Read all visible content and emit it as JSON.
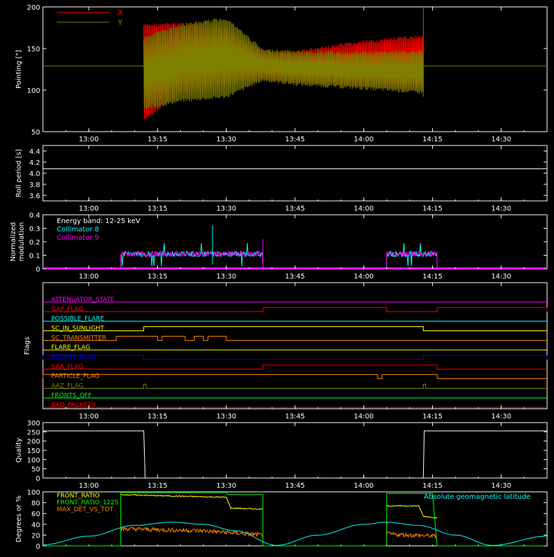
{
  "chart_data": [
    {
      "type": "line",
      "ylabel": "Pointing [\"]",
      "ylim": [
        50,
        200
      ],
      "yticks": [
        50,
        100,
        150,
        200
      ],
      "xlim": [
        "12:50",
        "14:40"
      ],
      "xticks": [
        "13:00",
        "13:15",
        "13:30",
        "13:45",
        "14:00",
        "14:15",
        "14:30"
      ],
      "legend": "top-left",
      "baseline_value": 129,
      "series": [
        {
          "name": "X",
          "color": "#ff0000",
          "start": "13:12",
          "end": "14:13",
          "envelope": [
            {
              "t": "13:12",
              "lo": 62,
              "hi": 180
            },
            {
              "t": "13:20",
              "lo": 95,
              "hi": 182
            },
            {
              "t": "13:30",
              "lo": 105,
              "hi": 175
            },
            {
              "t": "13:38",
              "lo": 112,
              "hi": 148
            },
            {
              "t": "13:45",
              "lo": 108,
              "hi": 148
            },
            {
              "t": "14:00",
              "lo": 103,
              "hi": 160
            },
            {
              "t": "14:13",
              "lo": 100,
              "hi": 167
            }
          ]
        },
        {
          "name": "Y",
          "color": "#808000",
          "start": "13:12",
          "end": "14:13",
          "envelope": [
            {
              "t": "13:12",
              "lo": 75,
              "hi": 165
            },
            {
              "t": "13:20",
              "lo": 85,
              "hi": 180
            },
            {
              "t": "13:30",
              "lo": 90,
              "hi": 188
            },
            {
              "t": "13:38",
              "lo": 110,
              "hi": 150
            },
            {
              "t": "13:45",
              "lo": 105,
              "hi": 148
            },
            {
              "t": "14:00",
              "lo": 100,
              "hi": 147
            },
            {
              "t": "14:13",
              "lo": 95,
              "hi": 148
            }
          ]
        }
      ]
    },
    {
      "type": "line",
      "ylabel": "Roll period [s]",
      "ylim": [
        3.5,
        4.5
      ],
      "yticks": [
        "3.6",
        "3.8",
        "4.0",
        "4.2",
        "4.4"
      ],
      "xticks": [
        "13:00",
        "13:15",
        "13:30",
        "13:45",
        "14:00",
        "14:15",
        "14:30"
      ],
      "series": [
        {
          "color": "#ffffff",
          "constant": 4.08
        }
      ]
    },
    {
      "type": "line",
      "ylabel": "Normalized modulation",
      "ylim": [
        0,
        0.4
      ],
      "yticks": [
        "0",
        "0.1",
        "0.2",
        "0.3",
        "0.4"
      ],
      "xticks": [
        "13:00",
        "13:15",
        "13:30",
        "13:45",
        "14:00",
        "14:15",
        "14:30"
      ],
      "annotation": "Energy band: 12-25 keV",
      "legend": "top-left",
      "series": [
        {
          "name": "Collimator 8",
          "color": "#00ffff",
          "segments": [
            {
              "start": "13:07",
              "end": "13:38",
              "level": 0.11
            },
            {
              "start": "14:05",
              "end": "14:16",
              "level": 0.11
            }
          ]
        },
        {
          "name": "Collimator 9",
          "color": "#ff00ff",
          "segments": [
            {
              "start": "13:07",
              "end": "13:38",
              "level": 0.11
            },
            {
              "start": "14:05",
              "end": "14:16",
              "level": 0.11
            }
          ]
        }
      ]
    },
    {
      "type": "line",
      "ylabel": "Flags",
      "xticks": [
        "13:00",
        "13:15",
        "13:30",
        "13:45",
        "14:00",
        "14:15",
        "14:30"
      ],
      "flags": [
        {
          "name": "ATTENUATOR_STATE",
          "color": "#ff00ff",
          "high": []
        },
        {
          "name": "GAP_FLAG",
          "color": "#ff0000",
          "high": [
            [
              "13:38",
              "14:05"
            ],
            [
              "14:16",
              "14:40"
            ]
          ]
        },
        {
          "name": "POSSIBLE_FLARE",
          "color": "#00ffff",
          "high": []
        },
        {
          "name": "SC_IN_SUNLIGHT",
          "color": "#ffff00",
          "high": [
            [
              "13:12",
              "14:13"
            ]
          ]
        },
        {
          "name": "SC_TRANSMITTER",
          "color": "#ff8800",
          "high": [
            [
              "13:06",
              "13:15"
            ],
            [
              "13:16",
              "13:21"
            ],
            [
              "13:23",
              "13:25"
            ],
            [
              "13:26",
              "13:30"
            ]
          ]
        },
        {
          "name": "FLARE_FLAG",
          "color": "#ffff00",
          "high": []
        },
        {
          "name": "ECLIPSE_FLAG",
          "color": "#0000ff",
          "high": [
            [
              "12:50",
              "13:12"
            ],
            [
              "14:13",
              "14:40"
            ]
          ]
        },
        {
          "name": "SAA_FLAG",
          "color": "#ff0000",
          "high": [
            [
              "13:38",
              "14:16"
            ]
          ]
        },
        {
          "name": "PARTICLE_FLAG",
          "color": "#ff8800",
          "high": [
            [
              "12:50",
              "14:03"
            ],
            [
              "14:04",
              "14:16"
            ]
          ]
        },
        {
          "name": "AAZ_FLAG",
          "color": "#808000",
          "high": [
            [
              "13:12",
              "13:12.5"
            ],
            [
              "14:13",
              "14:13.5"
            ]
          ]
        },
        {
          "name": "FRONTS_OFF",
          "color": "#00ff00",
          "high": []
        },
        {
          "name": "BAD_PACKETS",
          "color": "#ff0000",
          "high": []
        }
      ]
    },
    {
      "type": "line",
      "ylabel": "Quality",
      "ylim": [
        0,
        300
      ],
      "yticks": [
        "0",
        "50",
        "100",
        "150",
        "200",
        "250",
        "300"
      ],
      "xticks": [
        "13:00",
        "13:15",
        "13:30",
        "13:45",
        "14:00",
        "14:15",
        "14:30"
      ],
      "series": [
        {
          "color": "#ffffff",
          "points": [
            [
              "12:50",
              255
            ],
            [
              "13:12",
              255
            ],
            [
              "13:12.3",
              0
            ],
            [
              "14:13",
              0
            ],
            [
              "14:13.2",
              255
            ],
            [
              "14:40",
              255
            ]
          ]
        }
      ]
    },
    {
      "type": "line",
      "ylabel": "Degrees or %",
      "ylim": [
        0,
        100
      ],
      "yticks": [
        "0",
        "20",
        "40",
        "60",
        "80",
        "100"
      ],
      "xticks": [
        "13:00",
        "13:15",
        "13:30",
        "13:45",
        "14:00",
        "14:15",
        "14:30"
      ],
      "legend": "top-left",
      "series": [
        {
          "name": "FRONT_RATIO",
          "color": "#ffff00",
          "points": [
            [
              "13:07",
              95
            ],
            [
              "13:15",
              93
            ],
            [
              "13:25",
              91
            ],
            [
              "13:30",
              90
            ],
            [
              "13:31",
              70
            ],
            [
              "13:38",
              68
            ],
            [
              "14:05",
              74
            ],
            [
              "14:12",
              74
            ],
            [
              "14:13",
              55
            ],
            [
              "14:16",
              52
            ]
          ]
        },
        {
          "name": "FRONT_RATIO_1225",
          "color": "#00ff00",
          "points": [
            [
              "12:50",
              0
            ],
            [
              "13:07",
              0
            ],
            [
              "13:07",
              99
            ],
            [
              "13:30",
              99
            ],
            [
              "13:30.5",
              95
            ],
            [
              "13:38",
              95
            ],
            [
              "13:38",
              0
            ],
            [
              "14:05",
              0
            ],
            [
              "14:05",
              97
            ],
            [
              "14:15",
              97
            ],
            [
              "14:16",
              0
            ],
            [
              "14:40",
              0
            ]
          ]
        },
        {
          "name": "MAX_DET_VS_TOT",
          "color": "#ff8000",
          "points": [
            [
              "13:07",
              32
            ],
            [
              "13:15",
              30
            ],
            [
              "13:25",
              28
            ],
            [
              "13:35",
              22
            ],
            [
              "13:38",
              20
            ],
            [
              "14:05",
              22
            ],
            [
              "14:16",
              18
            ]
          ]
        },
        {
          "name": "Absolute geomagnetic latitude",
          "color": "#00ffff",
          "points": [
            [
              "12:50",
              2
            ],
            [
              "13:00",
              18
            ],
            [
              "13:10",
              38
            ],
            [
              "13:18",
              44
            ],
            [
              "13:25",
              40
            ],
            [
              "13:32",
              28
            ],
            [
              "13:41",
              1
            ],
            [
              "13:50",
              20
            ],
            [
              "14:00",
              40
            ],
            [
              "14:05",
              44
            ],
            [
              "14:12",
              38
            ],
            [
              "14:20",
              20
            ],
            [
              "14:28",
              1
            ],
            [
              "14:40",
              18
            ]
          ]
        }
      ]
    }
  ]
}
